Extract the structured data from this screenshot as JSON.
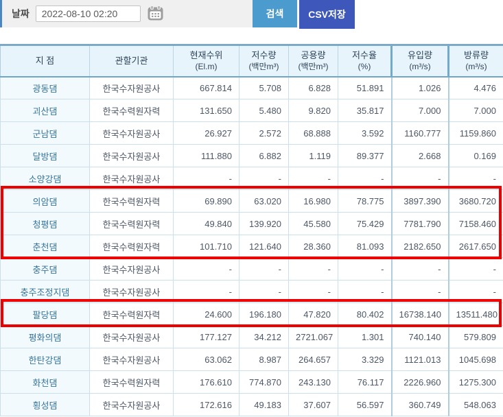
{
  "toolbar": {
    "date_label": "날짜",
    "date_value": "2022-08-10 02:20",
    "search_button": "검색",
    "csv_button": "CSV저장"
  },
  "colors": {
    "search_button_bg": "#4c9bce",
    "csv_button_bg": "#3d57bb",
    "highlight_border": "#ee0000",
    "header_bg": "#e8f4fb",
    "accent_stripe": "#4a86c0"
  },
  "table": {
    "columns": [
      {
        "title": "지 점",
        "unit": ""
      },
      {
        "title": "관할기관",
        "unit": ""
      },
      {
        "title": "현재수위",
        "unit": "(El.m)"
      },
      {
        "title": "저수량",
        "unit": "(백만m³)"
      },
      {
        "title": "공용량",
        "unit": "(백만m³)"
      },
      {
        "title": "저수율",
        "unit": "(%)"
      },
      {
        "title": "유입량",
        "unit": "(m³/s)"
      },
      {
        "title": "방류량",
        "unit": "(m³/s)"
      }
    ],
    "rows": [
      {
        "name": "광동댐",
        "agency": "한국수자원공사",
        "values": [
          "667.814",
          "5.708",
          "6.828",
          "51.891",
          "1.026",
          "4.476"
        ],
        "highlighted": false
      },
      {
        "name": "괴산댐",
        "agency": "한국수력원자력",
        "values": [
          "131.650",
          "5.480",
          "9.820",
          "35.817",
          "7.000",
          "7.000"
        ],
        "highlighted": false
      },
      {
        "name": "군남댐",
        "agency": "한국수자원공사",
        "values": [
          "26.927",
          "2.572",
          "68.888",
          "3.592",
          "1160.777",
          "1159.860"
        ],
        "highlighted": false
      },
      {
        "name": "달방댐",
        "agency": "한국수자원공사",
        "values": [
          "111.880",
          "6.882",
          "1.119",
          "89.377",
          "2.668",
          "0.169"
        ],
        "highlighted": false
      },
      {
        "name": "소양강댐",
        "agency": "한국수자원공사",
        "values": [
          "-",
          "-",
          "-",
          "-",
          "-",
          "-"
        ],
        "highlighted": false
      },
      {
        "name": "의암댐",
        "agency": "한국수력원자력",
        "values": [
          "69.890",
          "63.020",
          "16.980",
          "78.775",
          "3897.390",
          "3680.720"
        ],
        "highlighted": true
      },
      {
        "name": "청평댐",
        "agency": "한국수력원자력",
        "values": [
          "49.840",
          "139.920",
          "45.580",
          "75.429",
          "7781.790",
          "7158.460"
        ],
        "highlighted": true
      },
      {
        "name": "춘천댐",
        "agency": "한국수력원자력",
        "values": [
          "101.710",
          "121.640",
          "28.360",
          "81.093",
          "2182.650",
          "2617.650"
        ],
        "highlighted": true
      },
      {
        "name": "충주댐",
        "agency": "한국수자원공사",
        "values": [
          "-",
          "-",
          "-",
          "-",
          "-",
          "-"
        ],
        "highlighted": false
      },
      {
        "name": "충주조정지댐",
        "agency": "한국수자원공사",
        "values": [
          "-",
          "-",
          "-",
          "-",
          "-",
          "-"
        ],
        "highlighted": false
      },
      {
        "name": "팔당댐",
        "agency": "한국수력원자력",
        "values": [
          "24.600",
          "196.180",
          "47.820",
          "80.402",
          "16738.140",
          "13511.480"
        ],
        "highlighted": true
      },
      {
        "name": "평화의댐",
        "agency": "한국수자원공사",
        "values": [
          "177.127",
          "34.212",
          "2721.067",
          "1.301",
          "740.140",
          "579.809"
        ],
        "highlighted": false
      },
      {
        "name": "한탄강댐",
        "agency": "한국수자원공사",
        "values": [
          "63.062",
          "8.987",
          "264.657",
          "3.329",
          "1121.013",
          "1045.698"
        ],
        "highlighted": false
      },
      {
        "name": "화천댐",
        "agency": "한국수력원자력",
        "values": [
          "176.610",
          "774.870",
          "243.130",
          "76.117",
          "2226.960",
          "1275.300"
        ],
        "highlighted": false
      },
      {
        "name": "횡성댐",
        "agency": "한국수자원공사",
        "values": [
          "172.616",
          "49.183",
          "37.607",
          "56.597",
          "360.749",
          "548.063"
        ],
        "highlighted": false
      }
    ]
  }
}
